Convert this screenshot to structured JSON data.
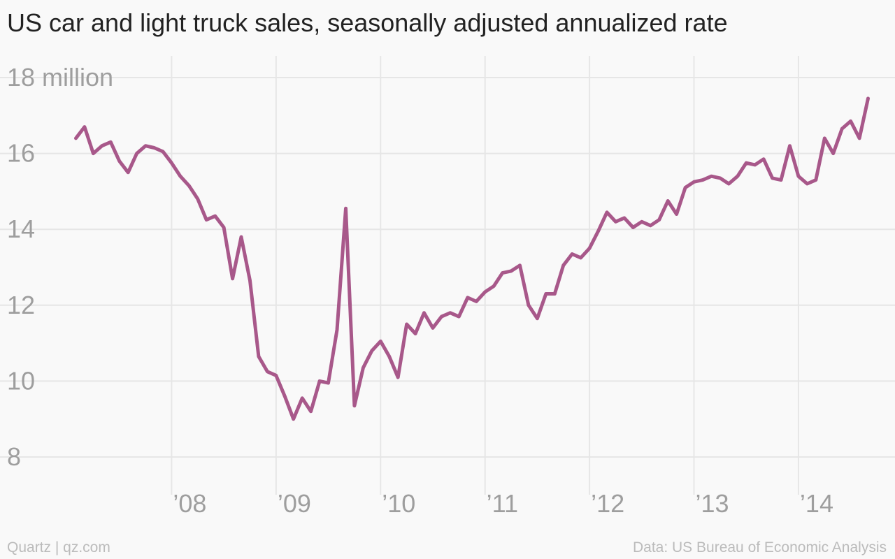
{
  "chart_data": {
    "type": "line",
    "title": "US car and light truck sales, seasonally adjusted annualized rate",
    "xlabel": "",
    "ylabel": "",
    "y_top_label": "18 million",
    "ylim": [
      8,
      18
    ],
    "yticks": [
      8,
      10,
      12,
      14,
      16,
      18
    ],
    "xlim": [
      2007.0,
      2014.75
    ],
    "xticks": [
      {
        "year": 2008,
        "label": "’08"
      },
      {
        "year": 2009,
        "label": "’09"
      },
      {
        "year": 2010,
        "label": "’10"
      },
      {
        "year": 2011,
        "label": "’11"
      },
      {
        "year": 2012,
        "label": "’12"
      },
      {
        "year": 2013,
        "label": "’13"
      },
      {
        "year": 2014,
        "label": "’14"
      }
    ],
    "x_start": "2007-02",
    "frequency": "monthly",
    "grid": true,
    "color": "#a8588a",
    "values": [
      16.4,
      16.7,
      16.0,
      16.2,
      16.3,
      15.8,
      15.5,
      16.0,
      16.2,
      16.15,
      16.05,
      15.75,
      15.4,
      15.15,
      14.8,
      14.25,
      14.35,
      14.05,
      12.7,
      13.8,
      12.65,
      10.65,
      10.25,
      10.15,
      9.6,
      9.0,
      9.55,
      9.2,
      10.0,
      9.95,
      11.35,
      14.55,
      9.35,
      10.35,
      10.8,
      11.05,
      10.65,
      10.1,
      11.5,
      11.25,
      11.8,
      11.4,
      11.7,
      11.8,
      11.7,
      12.2,
      12.1,
      12.35,
      12.5,
      12.85,
      12.9,
      13.05,
      12.0,
      11.65,
      12.3,
      12.3,
      13.05,
      13.35,
      13.25,
      13.5,
      13.95,
      14.45,
      14.2,
      14.3,
      14.05,
      14.2,
      14.1,
      14.25,
      14.75,
      14.4,
      15.1,
      15.25,
      15.3,
      15.4,
      15.35,
      15.2,
      15.4,
      15.75,
      15.7,
      15.85,
      15.35,
      15.3,
      16.2,
      15.4,
      15.2,
      15.3,
      16.4,
      16.0,
      16.65,
      16.85,
      16.4,
      17.45
    ]
  },
  "footer": {
    "source_left": "Quartz | qz.com",
    "source_right": "Data: US Bureau of Economic Analysis"
  }
}
